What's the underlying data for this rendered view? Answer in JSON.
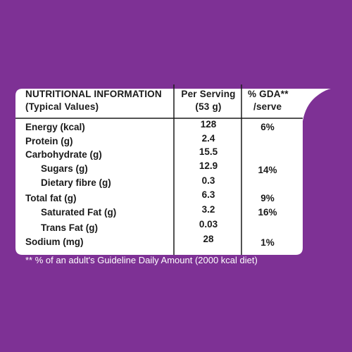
{
  "table": {
    "header": {
      "title": "NUTRITIONAL INFORMATION",
      "subtitle": "(Typical Values)",
      "col_serving_line1": "Per Serving",
      "col_serving_line2": "(53 g)",
      "col_gda_line1": "% GDA**",
      "col_gda_line2": "/serve"
    },
    "rows": [
      {
        "label": "Energy (kcal)",
        "value": "128",
        "gda": "6%"
      },
      {
        "label": "Protein (g)",
        "value": "2.4",
        "gda": ""
      },
      {
        "label": "Carbohydrate (g)",
        "value": "15.5",
        "gda": ""
      },
      {
        "label": "Sugars (g)",
        "value": "12.9",
        "gda": "14%"
      },
      {
        "label": "Dietary fibre (g)",
        "value": "0.3",
        "gda": ""
      },
      {
        "label": "Total fat (g)",
        "value": "6.3",
        "gda": "9%"
      },
      {
        "label": "Saturated Fat (g)",
        "value": "3.2",
        "gda": "16%"
      },
      {
        "label": "Trans Fat (g)",
        "value": "0.03",
        "gda": ""
      },
      {
        "label": "Sodium (mg)",
        "value": "28",
        "gda": "1%"
      }
    ]
  },
  "footnote": "** % of an adult's Guideline Daily Amount (2000 kcal diet)",
  "colors": {
    "background": "#7e3195",
    "panel": "#ffffff",
    "text": "#1a1a1a",
    "lines": "#1a1a1a"
  }
}
